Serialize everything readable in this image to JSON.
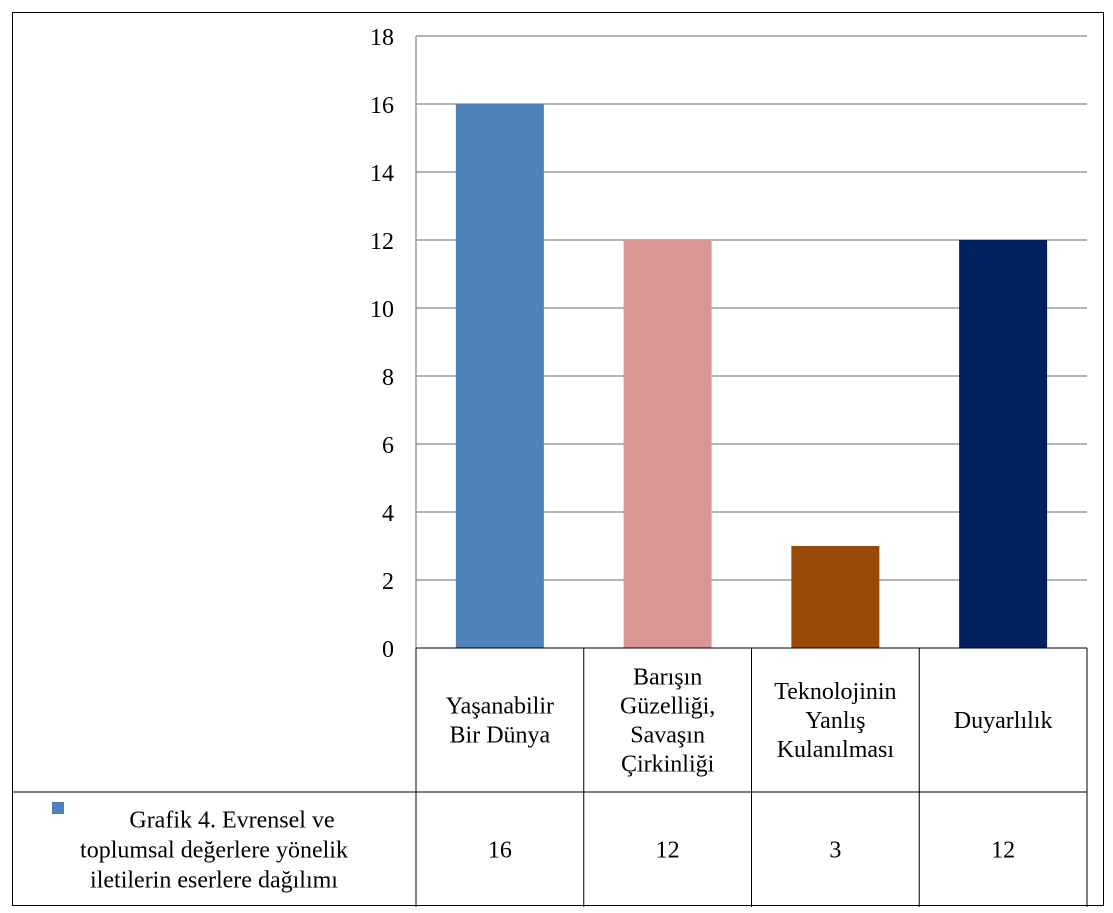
{
  "chart_data": {
    "type": "bar",
    "title": "",
    "xlabel": "",
    "ylabel": "",
    "ylim": [
      0,
      18
    ],
    "yticks": [
      0,
      2,
      4,
      6,
      8,
      10,
      12,
      14,
      16,
      18
    ],
    "grid": true,
    "legend_placement": "data-table-left",
    "categories": [
      [
        "Yaşanabilir",
        "Bir Dünya"
      ],
      [
        "Barışın",
        "Güzelliği,",
        "Savaşın",
        "Çirkinliği"
      ],
      [
        "Teknolojinin",
        "Yanlış",
        "Kulanılması"
      ],
      [
        "Duyarlılık"
      ]
    ],
    "series": [
      {
        "name": [
          "Grafik 4. Evrensel ve",
          "toplumsal değerlere yönelik",
          "iletilerin eserlere dağılımı"
        ],
        "values": [
          16,
          12,
          3,
          12
        ],
        "colors": [
          "#4f81bd",
          "#d99694",
          "#984807",
          "#002060"
        ],
        "legend_color": "#4f81bd"
      }
    ]
  }
}
